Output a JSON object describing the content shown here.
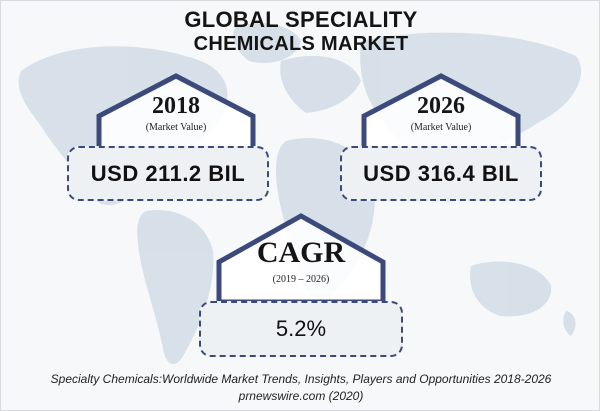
{
  "title_line1": "GLOBAL SPECIALITY",
  "title_line2": "CHEMICALS MARKET",
  "panels": [
    {
      "year": "2018",
      "subtitle": "(Market Value)",
      "value": "USD 211.2 BIL"
    },
    {
      "year": "2026",
      "subtitle": "(Market Value)",
      "value": "USD 316.4 BIL"
    }
  ],
  "cagr": {
    "label": "CAGR",
    "period": "(2019 – 2026)",
    "value": "5.2%"
  },
  "caption_line1": "Specialty Chemicals:Worldwide Market Trends, Insights, Players and Opportunities 2018-2026",
  "caption_line2": "prnewswire.com (2020)",
  "colors": {
    "accent": "#3b4a7a",
    "map": "#cdd9e4",
    "background": "#f7f8f9"
  }
}
